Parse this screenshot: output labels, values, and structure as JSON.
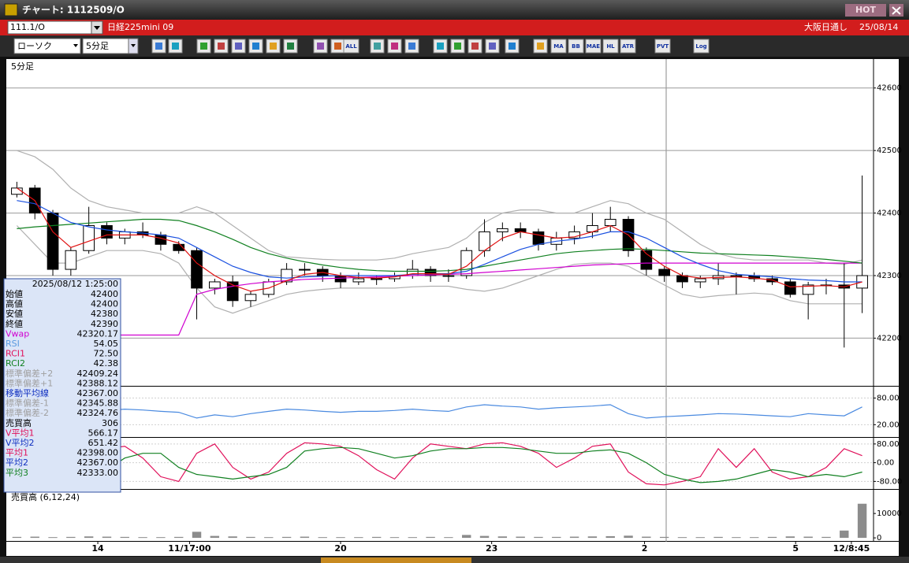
{
  "window": {
    "title": "チャート: 1112509/O",
    "hot": "HOT",
    "symbol": "111.1/O",
    "name": "日経225mini 09",
    "session": "大阪日通し",
    "date": "25/08/14"
  },
  "toolbar": {
    "chart_type": "ローソク",
    "interval": "5分足",
    "buttons": [
      "ALL",
      "MA",
      "BB",
      "MAE",
      "HL",
      "ATR",
      "PVT",
      "Log"
    ]
  },
  "info": {
    "timestamp": "2025/08/12 1:25:00",
    "rows": [
      {
        "label": "始値",
        "value": "42400",
        "color": "#000000"
      },
      {
        "label": "高値",
        "value": "42400",
        "color": "#000000"
      },
      {
        "label": "安値",
        "value": "42380",
        "color": "#000000"
      },
      {
        "label": "終値",
        "value": "42390",
        "color": "#000000"
      },
      {
        "label": "Vwap",
        "value": "42320.17",
        "color": "#d000d0"
      },
      {
        "label": "RSI",
        "value": "54.05",
        "color": "#5a9ae0"
      },
      {
        "label": "RCI1",
        "value": "72.50",
        "color": "#e0105a"
      },
      {
        "label": "RCI2",
        "value": "42.38",
        "color": "#108020"
      },
      {
        "label": "標準偏差+2",
        "value": "42409.24",
        "color": "#a0a0a0"
      },
      {
        "label": "標準偏差+1",
        "value": "42388.12",
        "color": "#a0a0a0"
      },
      {
        "label": "移動平均線",
        "value": "42367.00",
        "color": "#1030c0"
      },
      {
        "label": "標準偏差-1",
        "value": "42345.88",
        "color": "#a0a0a0"
      },
      {
        "label": "標準偏差-2",
        "value": "42324.76",
        "color": "#a0a0a0"
      },
      {
        "label": "売買高",
        "value": "306",
        "color": "#000000"
      },
      {
        "label": "V平均1",
        "value": "566.17",
        "color": "#e0105a"
      },
      {
        "label": "V平均2",
        "value": "651.42",
        "color": "#1030c0"
      },
      {
        "label": "平均1",
        "value": "42398.00",
        "color": "#e0105a"
      },
      {
        "label": "平均2",
        "value": "42367.00",
        "color": "#1030c0"
      },
      {
        "label": "平均3",
        "value": "42333.00",
        "color": "#108020"
      }
    ]
  },
  "chart_data": [
    {
      "type": "candlestick",
      "title": "5分足",
      "ylim": [
        42125,
        42645
      ],
      "yticks": [
        42200,
        42300,
        42400,
        42500,
        42600
      ],
      "grid": true,
      "open": [
        42430,
        42440,
        42400,
        42310,
        42340,
        42380,
        42360,
        42370,
        42365,
        42350,
        42340,
        42280,
        42290,
        42260,
        42270,
        42290,
        42310,
        42310,
        42300,
        42290,
        42295,
        42295,
        42300,
        42310,
        42300,
        42300,
        42340,
        42370,
        42375,
        42370,
        42350,
        42360,
        42370,
        42380,
        42390,
        42340,
        42310,
        42300,
        42290,
        42295,
        42300,
        42300,
        42295,
        42290,
        42270,
        42285,
        42285,
        42280
      ],
      "high": [
        42450,
        42445,
        42405,
        42345,
        42410,
        42385,
        42375,
        42385,
        42370,
        42355,
        42345,
        42295,
        42300,
        42275,
        42295,
        42320,
        42320,
        42315,
        42305,
        42305,
        42300,
        42305,
        42325,
        42315,
        42310,
        42345,
        42390,
        42385,
        42385,
        42375,
        42370,
        42380,
        42400,
        42410,
        42395,
        42345,
        42315,
        42305,
        42300,
        42320,
        42305,
        42305,
        42300,
        42295,
        42290,
        42295,
        42320,
        42460
      ],
      "low": [
        42425,
        42390,
        42300,
        42300,
        42335,
        42350,
        42350,
        42360,
        42340,
        42335,
        42230,
        42270,
        42250,
        42250,
        42265,
        42285,
        42300,
        42290,
        42280,
        42285,
        42285,
        42290,
        42295,
        42290,
        42290,
        42295,
        42330,
        42355,
        42360,
        42340,
        42340,
        42350,
        42360,
        42370,
        42330,
        42300,
        42290,
        42280,
        42280,
        42285,
        42270,
        42290,
        42285,
        42265,
        42230,
        42270,
        42185,
        42240
      ],
      "close": [
        42440,
        42400,
        42310,
        42340,
        42380,
        42360,
        42370,
        42365,
        42350,
        42340,
        42280,
        42290,
        42260,
        42270,
        42290,
        42310,
        42310,
        42300,
        42290,
        42295,
        42295,
        42300,
        42310,
        42300,
        42300,
        42340,
        42370,
        42375,
        42370,
        42350,
        42360,
        42370,
        42380,
        42390,
        42340,
        42310,
        42300,
        42290,
        42295,
        42300,
        42300,
        42295,
        42290,
        42270,
        42285,
        42285,
        42280,
        42300
      ],
      "series": [
        {
          "color": "#b0b0b0",
          "values": [
            42500,
            42490,
            42470,
            42440,
            42420,
            42410,
            42405,
            42400,
            42400,
            42400,
            42410,
            42400,
            42380,
            42360,
            42340,
            42330,
            42328,
            42326,
            42325,
            42325,
            42325,
            42328,
            42335,
            42340,
            42345,
            42360,
            42385,
            42400,
            42405,
            42405,
            42400,
            42400,
            42410,
            42420,
            42415,
            42400,
            42390,
            42370,
            42350,
            42335,
            42328,
            42325,
            42325,
            42325,
            42325,
            42320,
            42318,
            42325
          ]
        },
        {
          "color": "#b0b0b0",
          "values": [
            42380,
            42350,
            42320,
            42320,
            42330,
            42340,
            42340,
            42340,
            42335,
            42320,
            42280,
            42250,
            42240,
            42250,
            42260,
            42270,
            42275,
            42278,
            42280,
            42280,
            42280,
            42280,
            42282,
            42283,
            42283,
            42278,
            42275,
            42280,
            42290,
            42300,
            42310,
            42318,
            42320,
            42320,
            42315,
            42300,
            42285,
            42270,
            42265,
            42268,
            42270,
            42272,
            42270,
            42260,
            42255,
            42255,
            42255,
            42255
          ]
        },
        {
          "color": "#d000d0",
          "values": [
            42205,
            42205,
            42205,
            42205,
            42205,
            42205,
            42205,
            42205,
            42205,
            42205,
            42270,
            42278,
            42283,
            42287,
            42290,
            42292,
            42294,
            42295,
            42296,
            42297,
            42298,
            42299,
            42300,
            42301,
            42302,
            42303,
            42305,
            42307,
            42309,
            42311,
            42313,
            42315,
            42317,
            42318,
            42319,
            42320,
            42320,
            42320,
            42320,
            42320,
            42320,
            42320,
            42320,
            42320,
            42320,
            42320,
            42320,
            42320
          ]
        },
        {
          "color": "#108020",
          "values": [
            42375,
            42378,
            42380,
            42382,
            42384,
            42386,
            42388,
            42390,
            42390,
            42388,
            42380,
            42370,
            42358,
            42345,
            42335,
            42328,
            42322,
            42317,
            42313,
            42310,
            42308,
            42307,
            42307,
            42307,
            42308,
            42310,
            42315,
            42320,
            42325,
            42330,
            42335,
            42338,
            42340,
            42342,
            42343,
            42342,
            42340,
            42338,
            42336,
            42335,
            42334,
            42333,
            42332,
            42330,
            42328,
            42326,
            42323,
            42320
          ]
        },
        {
          "color": "#1a50e0",
          "values": [
            42420,
            42415,
            42400,
            42385,
            42378,
            42373,
            42370,
            42368,
            42365,
            42360,
            42345,
            42330,
            42315,
            42305,
            42298,
            42296,
            42298,
            42299,
            42300,
            42300,
            42300,
            42300,
            42302,
            42303,
            42303,
            42307,
            42318,
            42330,
            42342,
            42350,
            42355,
            42358,
            42363,
            42370,
            42370,
            42360,
            42345,
            42330,
            42318,
            42308,
            42302,
            42300,
            42298,
            42295,
            42293,
            42292,
            42290,
            42290
          ]
        },
        {
          "color": "#e01010",
          "values": [
            42440,
            42420,
            42370,
            42345,
            42355,
            42365,
            42365,
            42365,
            42360,
            42352,
            42320,
            42300,
            42285,
            42275,
            42280,
            42292,
            42302,
            42305,
            42300,
            42297,
            42296,
            42298,
            42303,
            42303,
            42302,
            42315,
            42340,
            42360,
            42370,
            42365,
            42360,
            42362,
            42370,
            42380,
            42365,
            42335,
            42315,
            42300,
            42296,
            42297,
            42298,
            42296,
            42293,
            42282,
            42283,
            42284,
            42282,
            42290
          ]
        }
      ]
    },
    {
      "type": "line",
      "ylim": [
        -6,
        104
      ],
      "yticks": [
        {
          "value": 20,
          "label": "20.00"
        },
        {
          "value": 80,
          "label": "80.00"
        }
      ],
      "grid": true,
      "series": [
        {
          "color": "#4a8ae0",
          "values": [
            62,
            55,
            40,
            50,
            60,
            52,
            55,
            53,
            50,
            48,
            35,
            42,
            38,
            45,
            50,
            55,
            53,
            50,
            48,
            50,
            50,
            52,
            55,
            52,
            50,
            60,
            65,
            62,
            60,
            55,
            58,
            60,
            62,
            65,
            45,
            35,
            38,
            40,
            42,
            45,
            44,
            42,
            40,
            38,
            45,
            42,
            40,
            60
          ]
        }
      ]
    },
    {
      "type": "line",
      "ylim": [
        -109,
        103
      ],
      "yticks": [
        {
          "value": -80,
          "label": "-80.00"
        },
        {
          "value": 0,
          "label": "0.00"
        },
        {
          "value": 80,
          "label": "80.00"
        }
      ],
      "grid": true,
      "series": [
        {
          "color": "#e0105a",
          "values": [
            60,
            70,
            -20,
            -60,
            -40,
            60,
            70,
            20,
            -60,
            -80,
            40,
            80,
            -20,
            -70,
            -40,
            40,
            85,
            80,
            70,
            30,
            -30,
            -70,
            20,
            80,
            70,
            60,
            80,
            85,
            70,
            40,
            -20,
            20,
            70,
            80,
            -40,
            -90,
            -95,
            -80,
            -60,
            60,
            -20,
            60,
            -40,
            -70,
            -60,
            -20,
            60,
            30
          ]
        },
        {
          "color": "#108020",
          "values": [
            20,
            50,
            30,
            0,
            -40,
            -30,
            20,
            40,
            40,
            -20,
            -50,
            -60,
            -70,
            -60,
            -50,
            -20,
            50,
            60,
            65,
            60,
            40,
            20,
            30,
            50,
            60,
            60,
            65,
            65,
            60,
            50,
            40,
            40,
            50,
            55,
            40,
            0,
            -50,
            -70,
            -85,
            -80,
            -70,
            -50,
            -30,
            -40,
            -60,
            -50,
            -60,
            -40
          ]
        }
      ]
    },
    {
      "type": "bar",
      "title": "売買高 (6,12,24)",
      "ylim": [
        -940,
        19400
      ],
      "yticks": [
        0,
        10000
      ],
      "grid": false,
      "color": "#8c8c8c",
      "values": [
        400,
        500,
        300,
        400,
        600,
        500,
        400,
        300,
        300,
        400,
        2500,
        800,
        600,
        400,
        300,
        400,
        500,
        300,
        300,
        300,
        400,
        300,
        300,
        400,
        300,
        1200,
        800,
        600,
        500,
        400,
        400,
        500,
        600,
        700,
        900,
        500,
        400,
        300,
        300,
        400,
        300,
        300,
        400,
        600,
        500,
        400,
        3000,
        14000
      ],
      "xticks": [
        {
          "value": 4.5,
          "label": "14"
        },
        {
          "value": 9.6,
          "label": "11/17:00"
        },
        {
          "value": 18,
          "label": "20"
        },
        {
          "value": 26.4,
          "label": "23"
        },
        {
          "value": 34.9,
          "label": "2"
        },
        {
          "value": 43.3,
          "label": "5"
        },
        {
          "value": 46.4,
          "label": "12/8:45"
        }
      ]
    }
  ]
}
